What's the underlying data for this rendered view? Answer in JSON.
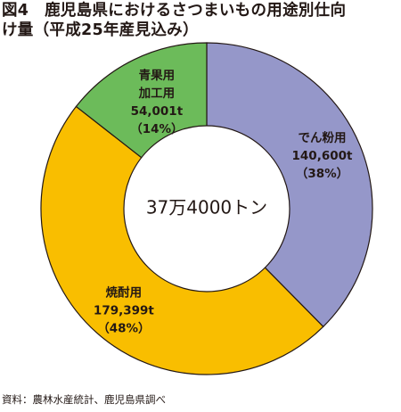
{
  "title": {
    "line1": "図4　鹿児島県におけるさつまいもの用途別仕向",
    "line2": "け量（平成25年産見込み）"
  },
  "source": "資料：農林水産統計、鹿児島県調べ",
  "chart_data": {
    "type": "pie",
    "variant": "donut",
    "title": "図4　鹿児島県におけるさつまいもの用途別仕向け量（平成25年産見込み）",
    "center_text": "37万4000トン",
    "total": 374000,
    "unit": "t",
    "start_angle_deg": 0,
    "direction": "clockwise",
    "segments": [
      {
        "name": "でん粉用",
        "value": 140600,
        "value_label": "140,600t",
        "percent": 38,
        "percent_label": "（38%）",
        "color": "#9597c9"
      },
      {
        "name": "焼酎用",
        "value": 179399,
        "value_label": "179,399t",
        "percent": 48,
        "percent_label": "（48%）",
        "color": "#f9be00"
      },
      {
        "name": "青果用\n加工用",
        "name_lines": [
          "青果用",
          "加工用"
        ],
        "value": 54001,
        "value_label": "54,001t",
        "percent": 14,
        "percent_label": "（14%）",
        "color": "#6cbb5a"
      }
    ],
    "stroke_color": "#231815",
    "center_fill": "#ffffff"
  }
}
